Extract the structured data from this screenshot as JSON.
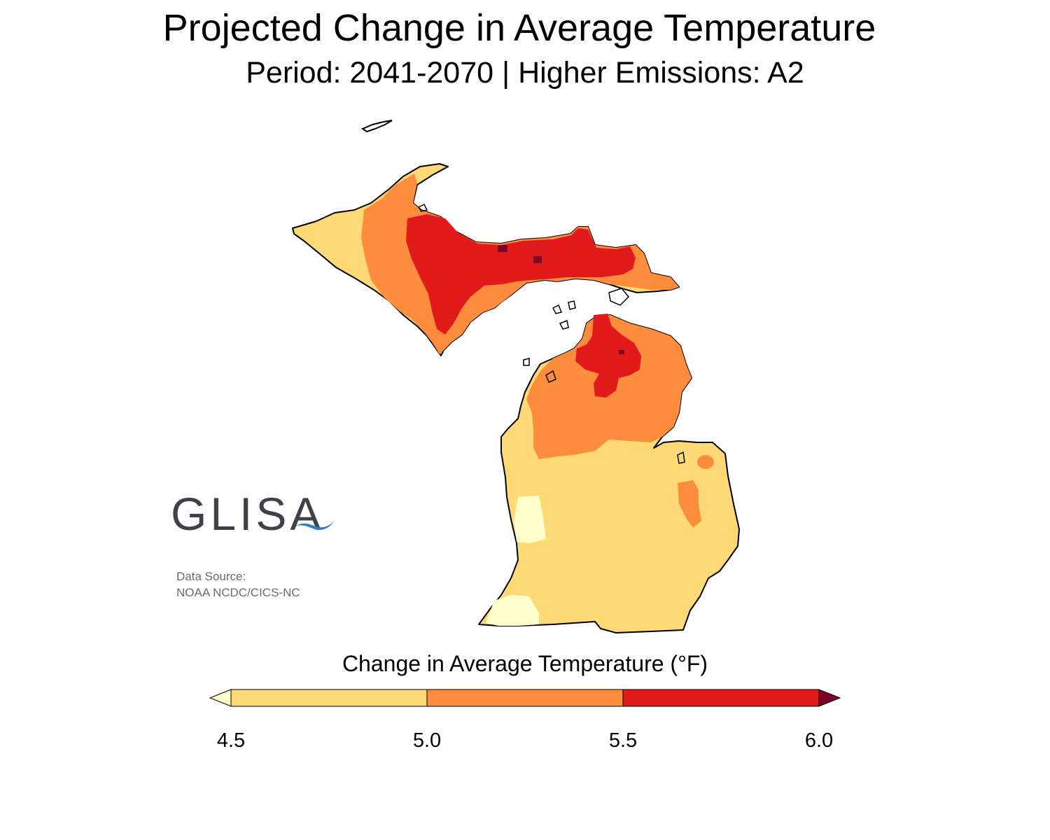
{
  "header": {
    "title": "Projected Change in Average Temperature",
    "subtitle": "Period: 2041-2070 | Higher Emissions: A2"
  },
  "branding": {
    "logo_text": "GLISA",
    "logo_color": "#3f4247",
    "wave_color": "#2a7fc1",
    "source_label": "Data Source:",
    "source_value": "NOAA NCDC/CICS-NC"
  },
  "legend": {
    "title": "Change in Average Temperature (°F)",
    "ticks": [
      "4.5",
      "5.0",
      "5.5",
      "6.0"
    ],
    "bins": [
      {
        "range": "< 4.5",
        "color": "#ffffcc"
      },
      {
        "range": "4.5–5.0",
        "color": "#fed976"
      },
      {
        "range": "5.0–5.5",
        "color": "#fd8d3c"
      },
      {
        "range": "5.5–6.0",
        "color": "#e31a1c"
      },
      {
        "range": "> 6.0",
        "color": "#800026"
      }
    ]
  }
}
